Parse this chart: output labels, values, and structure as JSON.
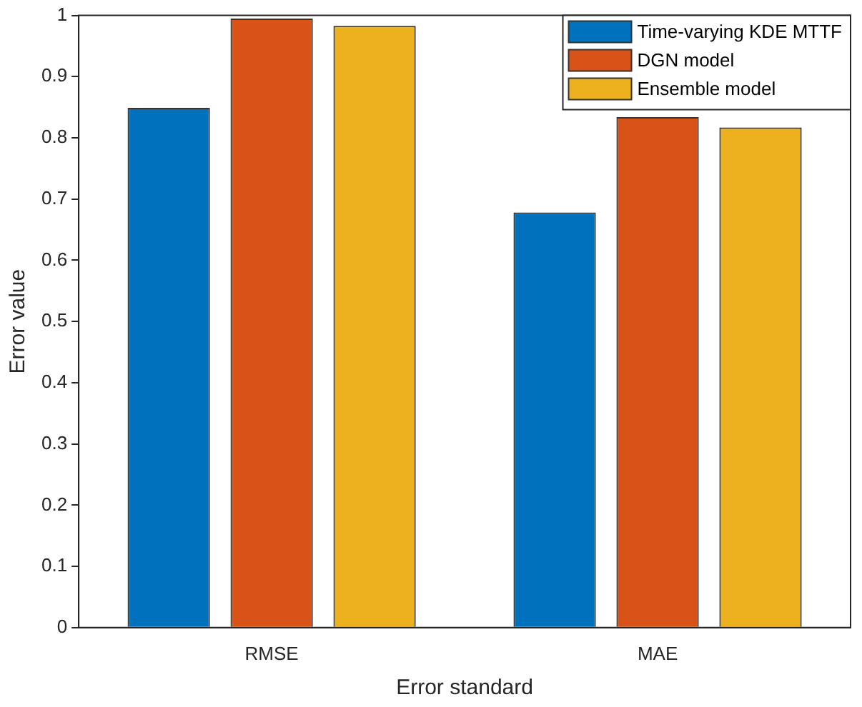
{
  "chart_data": {
    "type": "bar",
    "xlabel": "Error standard",
    "ylabel": "Error value",
    "categories": [
      "RMSE",
      "MAE"
    ],
    "series": [
      {
        "name": "Time-varying KDE MTTF",
        "color": "#0072bd",
        "values": [
          0.849,
          0.678
        ]
      },
      {
        "name": "DGN model",
        "color": "#d95319",
        "values": [
          0.995,
          0.834
        ]
      },
      {
        "name": "Ensemble model",
        "color": "#edb120",
        "values": [
          0.983,
          0.817
        ]
      }
    ],
    "ylim": [
      0,
      1
    ],
    "yticks": [
      0,
      0.1,
      0.2,
      0.3,
      0.4,
      0.5,
      0.6,
      0.7,
      0.8,
      0.9,
      1
    ],
    "grid": false,
    "legend": "top right"
  }
}
